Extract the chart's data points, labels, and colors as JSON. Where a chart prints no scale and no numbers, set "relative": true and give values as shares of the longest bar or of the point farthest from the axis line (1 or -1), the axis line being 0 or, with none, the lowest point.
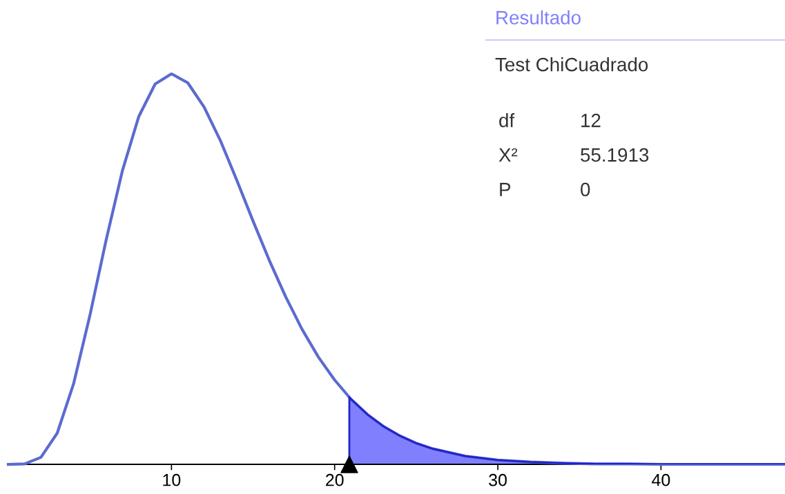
{
  "chart_data": {
    "type": "line",
    "title": "Resultado",
    "subtitle": "Test ChiCuadrado",
    "annotations": [
      "df",
      "12",
      "X²",
      "55.1913",
      "P",
      "0"
    ],
    "relative": true,
    "xlim": [
      0,
      47.6
    ],
    "xticks": [
      10,
      20,
      30,
      40
    ],
    "grid": false,
    "series": [
      {
        "type": "line",
        "color": "#5b6bd0",
        "x": [
          0,
          1,
          2,
          3,
          4,
          5,
          6,
          7,
          8,
          9,
          10,
          11,
          12,
          13,
          14,
          15,
          16,
          17,
          18,
          19,
          20,
          21,
          22,
          23,
          24,
          25,
          26,
          28,
          30,
          32,
          34,
          36,
          38,
          40,
          44,
          47.6
        ],
        "values": [
          0,
          0.001,
          0.018,
          0.08,
          0.206,
          0.381,
          0.575,
          0.753,
          0.891,
          0.974,
          1,
          0.977,
          0.915,
          0.829,
          0.728,
          0.623,
          0.522,
          0.429,
          0.346,
          0.275,
          0.216,
          0.167,
          0.128,
          0.097,
          0.073,
          0.054,
          0.04,
          0.021,
          0.011,
          0.006,
          0.003,
          0.001,
          0.001,
          0,
          0,
          0
        ]
      },
      {
        "type": "area",
        "color": "#8080ff",
        "x": [
          20.9,
          21,
          22,
          23,
          24,
          25,
          26,
          28,
          30,
          32,
          34,
          36,
          38,
          40,
          44,
          47.6
        ],
        "values": [
          0.172,
          0.167,
          0.128,
          0.097,
          0.073,
          0.054,
          0.04,
          0.021,
          0.011,
          0.006,
          0.003,
          0.001,
          0.001,
          0,
          0,
          0
        ]
      },
      {
        "type": "scatter",
        "color": "#000000",
        "marker": "triangle",
        "x": [
          20.9
        ],
        "values": [
          0
        ]
      }
    ]
  }
}
